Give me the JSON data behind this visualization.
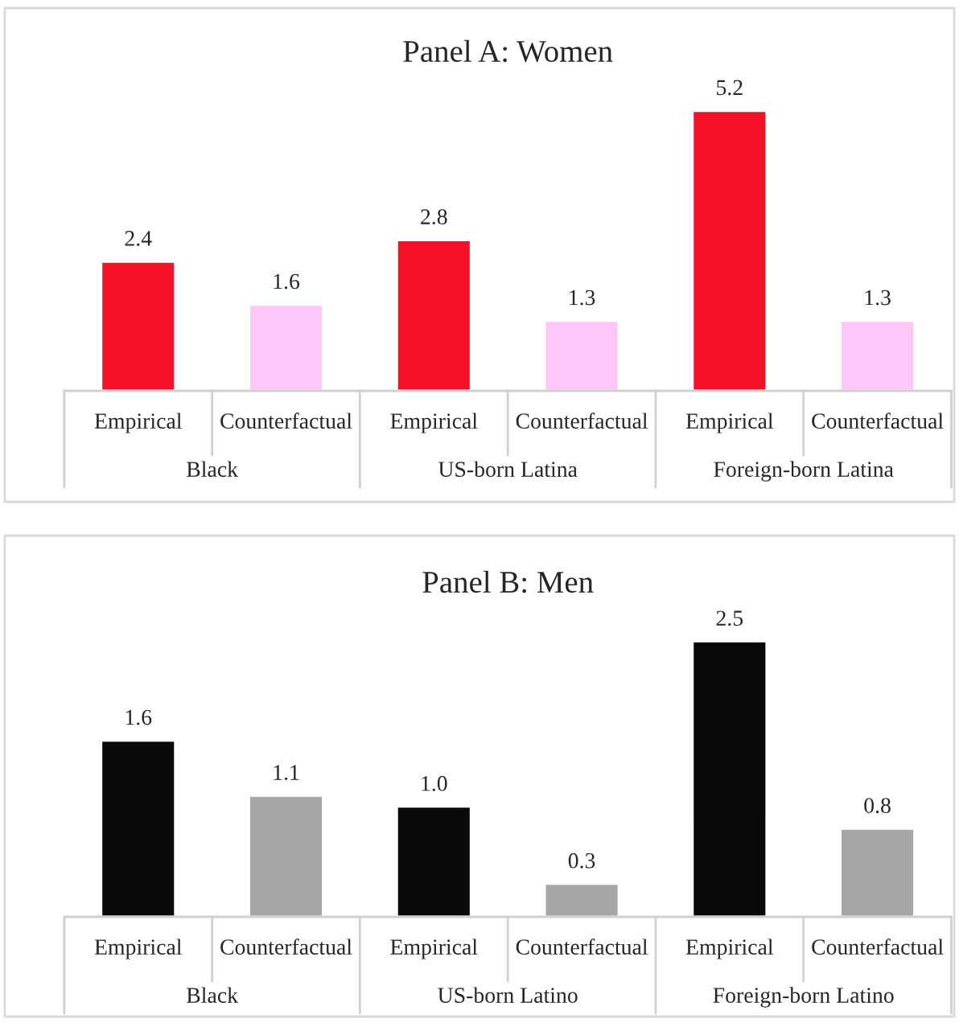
{
  "chart_data": [
    {
      "type": "bar",
      "title": "Panel A: Women",
      "categories": [
        "Empirical",
        "Counterfactual",
        "Empirical",
        "Counterfactual",
        "Empirical",
        "Counterfactual"
      ],
      "values": [
        2.4,
        1.6,
        2.8,
        1.3,
        5.2,
        1.3
      ],
      "colors": [
        "#f5102a",
        "#fdc8f8",
        "#f5102a",
        "#fdc8f8",
        "#f5102a",
        "#fdc8f8"
      ],
      "data_labels": true,
      "annotations": [
        "Black",
        "US-born Latina",
        "Foreign-born Latina"
      ]
    },
    {
      "type": "bar",
      "title": "Panel B: Men",
      "categories": [
        "Empirical",
        "Counterfactual",
        "Empirical",
        "Counterfactual",
        "Empirical",
        "Counterfactual"
      ],
      "values": [
        1.6,
        1.1,
        1.0,
        0.3,
        2.5,
        0.8
      ],
      "value_labels": [
        "1.6",
        "1.1",
        "1.0",
        "0.3",
        "2.5",
        "0.8"
      ],
      "colors": [
        "#0a0a0a",
        "#a6a6a6",
        "#0a0a0a",
        "#a6a6a6",
        "#0a0a0a",
        "#a6a6a6"
      ],
      "annotations": [
        "Black",
        "US-born Latino",
        "Foreign-born Latino"
      ]
    }
  ]
}
